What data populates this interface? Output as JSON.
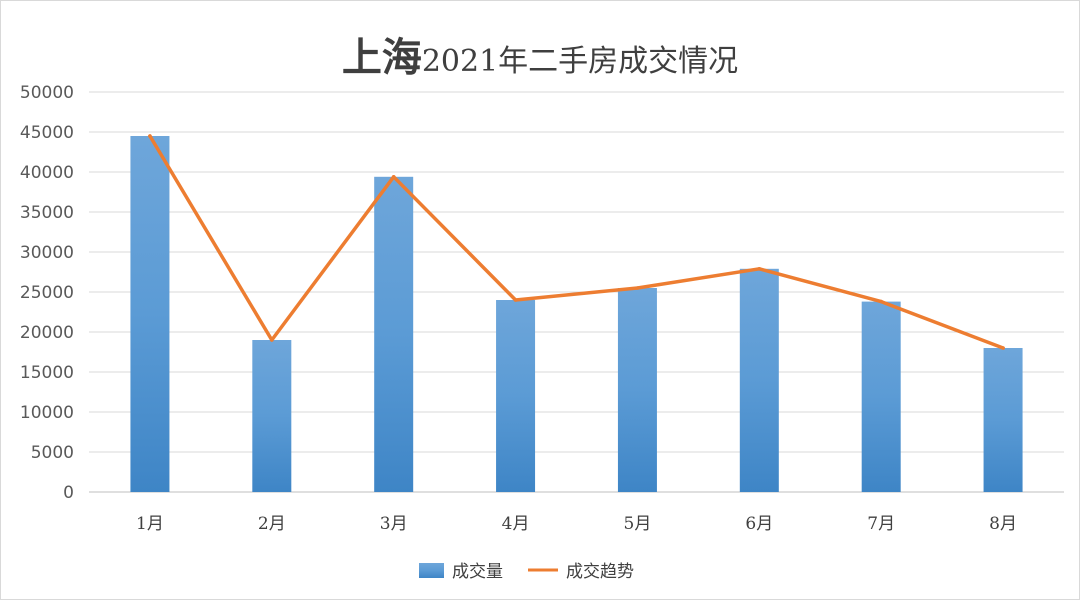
{
  "chart_data": {
    "type": "bar",
    "title_prefix": "上海",
    "title_suffix": "2021年二手房成交情况",
    "categories": [
      "1月",
      "2月",
      "3月",
      "4月",
      "5月",
      "6月",
      "7月",
      "8月"
    ],
    "series": [
      {
        "name": "成交量",
        "type": "bar",
        "color": "#5b9bd5",
        "values": [
          44500,
          19000,
          39400,
          24000,
          25500,
          27900,
          23800,
          18000
        ]
      },
      {
        "name": "成交趋势",
        "type": "line",
        "color": "#ed7d31",
        "values": [
          44500,
          19000,
          39400,
          24000,
          25500,
          27900,
          23800,
          18000
        ]
      }
    ],
    "y_ticks": [
      "0",
      "5000",
      "10000",
      "15000",
      "20000",
      "25000",
      "30000",
      "35000",
      "40000",
      "45000",
      "50000"
    ],
    "ylim": [
      0,
      50000
    ],
    "grid": true,
    "legend_position": "bottom"
  }
}
